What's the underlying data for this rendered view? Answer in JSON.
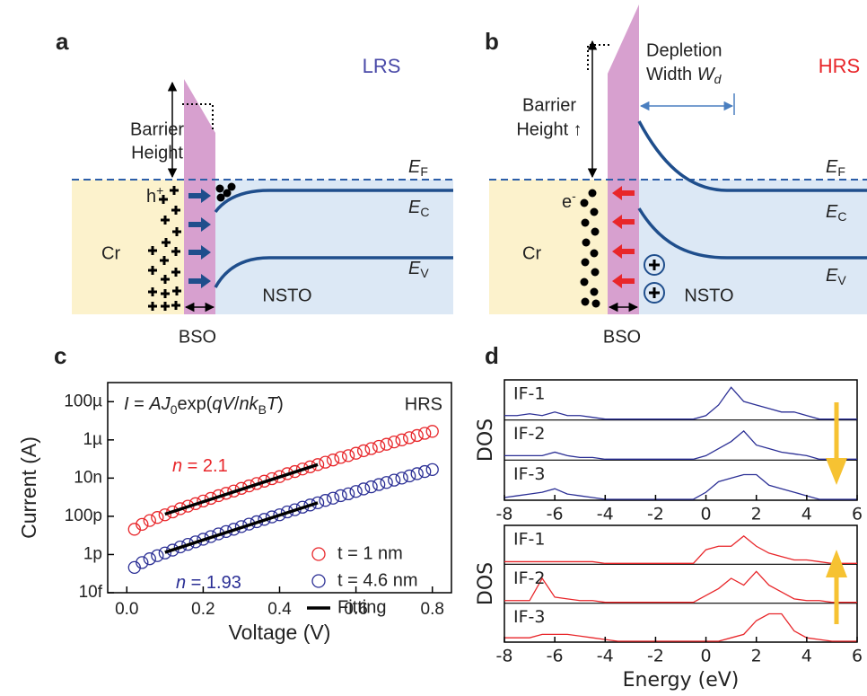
{
  "panel_labels": [
    "a",
    "b",
    "c",
    "d"
  ],
  "diagram_a": {
    "state": "LRS",
    "barrier": [
      "Barrier",
      "Height"
    ],
    "ef": [
      "E",
      "F"
    ],
    "ec": [
      "E",
      "C"
    ],
    "ev": [
      "E",
      "V"
    ],
    "carrier": [
      "h",
      "+"
    ],
    "metal": "Cr",
    "oxide": "NSTO",
    "barrier_layer": "BSO"
  },
  "diagram_b": {
    "state": "HRS",
    "depletion": [
      "Depletion",
      "Width ",
      "W",
      "d"
    ],
    "barrier": [
      "Barrier",
      "Height ↑"
    ],
    "ef": [
      "E",
      "F"
    ],
    "ec": [
      "E",
      "C"
    ],
    "ev": [
      "E",
      "V"
    ],
    "carrier": [
      "e",
      "-"
    ],
    "metal": "Cr",
    "oxide": "NSTO",
    "barrier_layer": "BSO"
  },
  "chart_data": [
    {
      "type": "scatter",
      "formula": [
        "I",
        " = ",
        "A",
        "J",
        "0",
        "exp(",
        "qV",
        "/",
        "nk",
        "B",
        "T",
        ")"
      ],
      "state": "HRS",
      "xlabel": "Voltage (V)",
      "ylabel": "Current (A)",
      "xlim": [
        -0.05,
        0.85
      ],
      "xticks": [
        {
          "value": 0,
          "label": "0.0"
        },
        0.2,
        0.4,
        0.6,
        0.8
      ],
      "ylim": [
        1e-14,
        0.001
      ],
      "log_y": true,
      "yticks": [
        {
          "value": 0.0001,
          "label": "100µ"
        },
        {
          "value": 1e-06,
          "label": "1µ"
        },
        {
          "value": 1e-08,
          "label": "10n"
        },
        {
          "value": 1e-10,
          "label": "100p"
        },
        {
          "value": 1e-12,
          "label": "1p"
        },
        {
          "value": 1e-14,
          "label": "10f"
        }
      ],
      "x": [
        0.02,
        0.04,
        0.06,
        0.08,
        0.1,
        0.12,
        0.14,
        0.16,
        0.18,
        0.2,
        0.22,
        0.24,
        0.26,
        0.28,
        0.3,
        0.32,
        0.34,
        0.36,
        0.38,
        0.4,
        0.42,
        0.44,
        0.46,
        0.48,
        0.5,
        0.52,
        0.54,
        0.56,
        0.58,
        0.6,
        0.62,
        0.64,
        0.66,
        0.68,
        0.7,
        0.72,
        0.74,
        0.76,
        0.78,
        0.8
      ],
      "series": [
        {
          "name": "t = 1 nm",
          "color": "#e8262a",
          "fit_label": [
            "n",
            " = 2.1"
          ],
          "values": [
            2.1e-11,
            3.8e-11,
            6e-11,
            8.7e-11,
            1.2e-10,
            1.7e-10,
            2.5e-10,
            3.4e-10,
            4.6e-10,
            6.3e-10,
            8.7e-10,
            1.2e-09,
            1.6e-09,
            2.1e-09,
            2.9e-09,
            3.9e-09,
            5.2e-09,
            6.9e-09,
            9.3e-09,
            1.2e-08,
            1.7e-08,
            2.2e-08,
            3e-08,
            3.9e-08,
            5.1e-08,
            6.8e-08,
            8.9e-08,
            1.2e-07,
            1.5e-07,
            2e-07,
            2.7e-07,
            3.5e-07,
            4.6e-07,
            5.9e-07,
            7.8e-07,
            1e-06,
            1.3e-06,
            1.7e-06,
            2.2e-06,
            2.8e-06
          ]
        },
        {
          "name": "t = 4.6 nm",
          "color": "#2b2f95",
          "fit_label": [
            "n",
            " = 1.93"
          ],
          "values": [
            2.1e-13,
            3.8e-13,
            6e-13,
            8.7e-13,
            1.2e-12,
            1.7e-12,
            2.5e-12,
            3.4e-12,
            4.6e-12,
            6.3e-12,
            8.7e-12,
            1.2e-11,
            1.6e-11,
            2.1e-11,
            2.9e-11,
            3.9e-11,
            5.2e-11,
            6.9e-11,
            9.3e-11,
            1.2e-10,
            1.7e-10,
            2.2e-10,
            3e-10,
            3.9e-10,
            5.1e-10,
            6.8e-10,
            8.9e-10,
            1.2e-09,
            1.5e-09,
            2e-09,
            2.7e-09,
            3.5e-09,
            4.6e-09,
            5.9e-09,
            7.8e-09,
            1e-08,
            1.3e-08,
            1.7e-08,
            2.2e-08,
            2.8e-08
          ]
        },
        {
          "name": "Fitting",
          "color": "#000000",
          "x": [
            0.1,
            0.5,
            null,
            0.1,
            0.5
          ],
          "values": [
            1.3e-10,
            5.1e-08,
            null,
            1.3e-12,
            5.1e-10
          ]
        }
      ]
    },
    {
      "type": "line",
      "ylabel": "DOS",
      "xlim": [
        -8,
        6
      ],
      "xticks": [
        -8,
        -6,
        -4,
        -2,
        0,
        2,
        4,
        6
      ],
      "ylim": [
        0,
        10
      ],
      "x": [
        -8,
        -7.5,
        -7,
        -6.5,
        -6,
        -5.5,
        -5,
        -4.5,
        -4,
        -3.5,
        -3,
        -2.5,
        -2,
        -1.5,
        -1,
        -0.5,
        0,
        0.5,
        1,
        1.5,
        2,
        2.5,
        3,
        3.5,
        4,
        4.5,
        5,
        5.5,
        6
      ],
      "series": [
        {
          "name": "IF-1",
          "color": "#2b2f95",
          "values": [
            1,
            1,
            1.5,
            1,
            2,
            1,
            1,
            0.5,
            0,
            0,
            0,
            0,
            0,
            0,
            0,
            0,
            1,
            4,
            9,
            5,
            4,
            3,
            2,
            2,
            1,
            0,
            0,
            0,
            0
          ]
        },
        {
          "name": "IF-2",
          "color": "#2b2f95",
          "values": [
            1,
            1,
            1,
            1,
            2,
            1,
            0.5,
            0.5,
            0,
            0,
            0,
            0,
            0,
            0,
            0,
            0,
            1,
            3,
            5,
            8,
            4,
            3,
            2,
            1.5,
            1,
            0,
            0,
            0,
            0
          ]
        },
        {
          "name": "IF-3",
          "color": "#2b2f95",
          "values": [
            0.5,
            1,
            1.5,
            2,
            3,
            1.5,
            1,
            0.5,
            0,
            0,
            0,
            0,
            0,
            0,
            0,
            0,
            2,
            5,
            6,
            7,
            7,
            4,
            3,
            2,
            1,
            0,
            0,
            0,
            0
          ]
        }
      ]
    },
    {
      "type": "line",
      "ylabel": "DOS",
      "xlabel": "Energy (eV)",
      "xlim": [
        -8,
        6
      ],
      "xticks": [
        -8,
        -6,
        -4,
        -2,
        0,
        2,
        4,
        6
      ],
      "ylim": [
        0,
        10
      ],
      "x": [
        -8,
        -7.5,
        -7,
        -6.5,
        -6,
        -5.5,
        -5,
        -4.5,
        -4,
        -3.5,
        -3,
        -2.5,
        -2,
        -1.5,
        -1,
        -0.5,
        0,
        0.5,
        1,
        1.5,
        2,
        2.5,
        3,
        3.5,
        4,
        4.5,
        5,
        5.5,
        6
      ],
      "series": [
        {
          "name": "IF-1",
          "color": "#e8262a",
          "values": [
            0.5,
            0.5,
            0.5,
            0.5,
            0.5,
            0.5,
            0.5,
            0.5,
            0,
            0,
            0,
            0,
            0,
            0,
            0,
            0,
            4,
            5,
            5,
            8,
            5,
            3,
            2,
            1,
            1,
            0.5,
            0,
            0,
            0
          ]
        },
        {
          "name": "IF-2",
          "color": "#e8262a",
          "values": [
            0.5,
            0.5,
            0.5,
            7,
            1.5,
            1,
            0.5,
            0.5,
            0,
            0,
            0,
            0,
            0,
            0,
            0,
            0,
            2,
            4,
            7,
            5,
            9,
            5,
            3,
            1,
            0.5,
            0.5,
            0,
            0,
            0
          ]
        },
        {
          "name": "IF-3",
          "color": "#e8262a",
          "values": [
            1,
            1,
            1,
            2,
            2,
            2,
            1.5,
            1,
            0.5,
            0,
            0,
            0,
            0,
            0,
            0,
            0,
            0,
            0,
            1,
            2,
            6,
            8,
            8,
            3,
            1,
            0.5,
            0,
            0,
            0
          ]
        }
      ]
    }
  ]
}
